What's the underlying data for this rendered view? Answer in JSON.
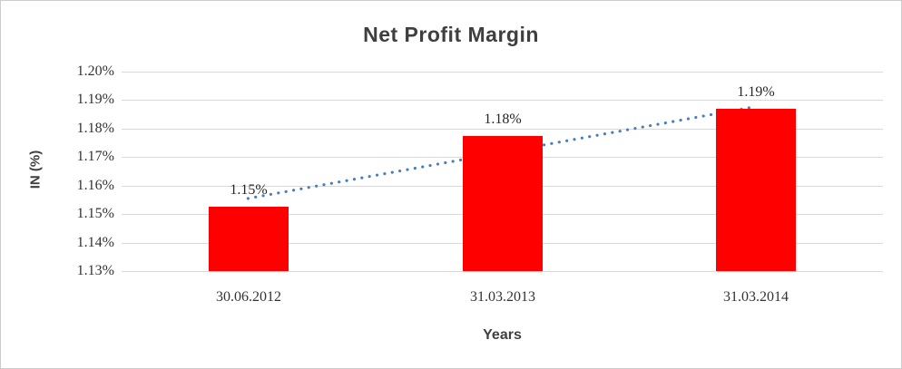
{
  "chart_data": {
    "type": "bar",
    "title": "Net Profit Margin",
    "xlabel": "Years",
    "ylabel": "IN (%)",
    "categories": [
      "30.06.2012",
      "31.03.2013",
      "31.03.2014"
    ],
    "values": [
      1.1525,
      1.1775,
      1.187
    ],
    "data_labels": [
      "1.15%",
      "1.18%",
      "1.19%"
    ],
    "ylim": [
      1.13,
      1.2
    ],
    "ytick_step": 0.01,
    "ytick_labels": [
      "1.20%",
      "1.19%",
      "1.18%",
      "1.17%",
      "1.16%",
      "1.15%",
      "1.14%",
      "1.13%"
    ],
    "grid": true,
    "legend": "none",
    "bar_color": "#ff0000",
    "gridline_color": "#d9d9d9",
    "trendline": {
      "style": "dotted",
      "color": "#4a7ebb",
      "start": {
        "x_frac": 0.166,
        "value": 1.1555
      },
      "end": {
        "x_frac": 0.828,
        "value": 1.1875
      }
    }
  }
}
